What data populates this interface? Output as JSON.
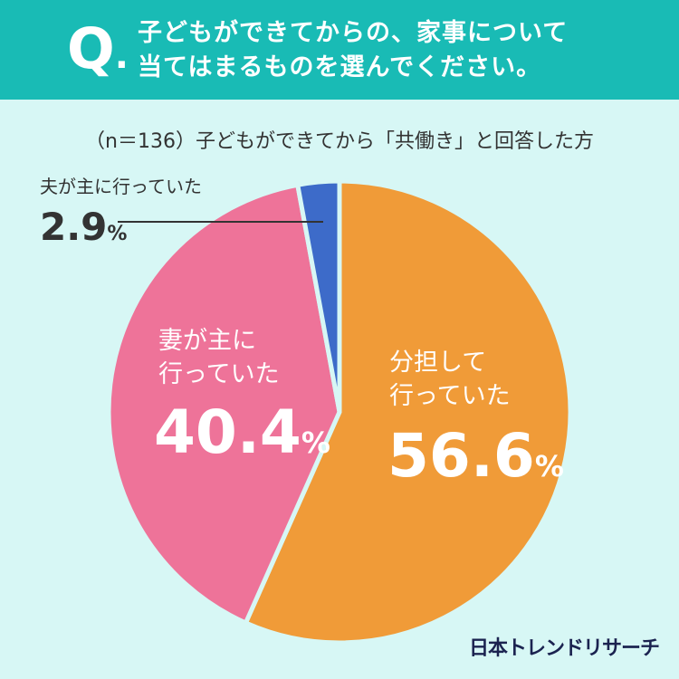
{
  "header": {
    "q_mark": "Q",
    "question_line1": "子どもができてからの、家事について",
    "question_line2": "当てはまるものを選んでください。"
  },
  "sample_note": "（n＝136）子どもができてから「共働き」と回答した方",
  "chart_data": {
    "type": "pie",
    "slices": [
      {
        "label_line1": "分担して",
        "label_line2": "行っていた",
        "value": 56.6,
        "value_text": "56.6",
        "unit": "%",
        "color": "#f09b38"
      },
      {
        "label_line1": "妻が主に",
        "label_line2": "行っていた",
        "value": 40.4,
        "value_text": "40.4",
        "unit": "%",
        "color": "#ee7399"
      },
      {
        "label_line1": "夫が主に行っていた",
        "label_line2": "",
        "value": 2.9,
        "value_text": "2.9",
        "unit": "%",
        "color": "#3d6bc9"
      }
    ]
  },
  "logo": "日本トレンドリサーチ",
  "colors": {
    "header_bg": "#19bbb5",
    "page_bg": "#d7f7f5",
    "separator": "#d7f7f5"
  }
}
